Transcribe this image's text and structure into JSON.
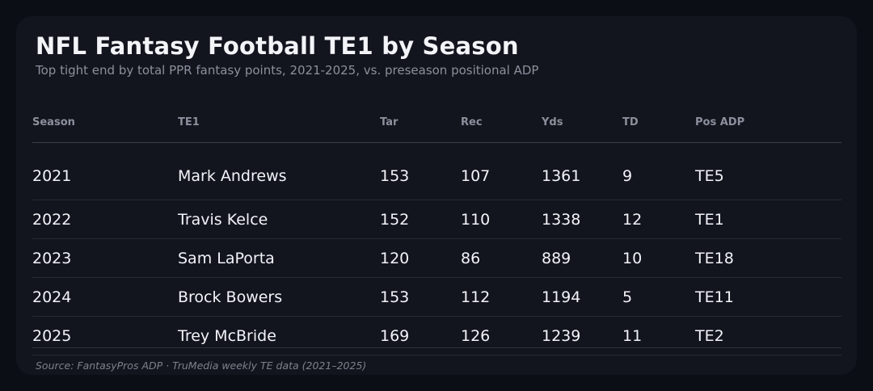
{
  "header": {
    "title": "NFL Fantasy Football TE1 by Season",
    "subtitle": "Top tight end by total PPR fantasy points, 2021-2025, vs. preseason positional ADP"
  },
  "chart_data": {
    "type": "table",
    "columns": [
      "Season",
      "TE1",
      "Tar",
      "Rec",
      "Yds",
      "TD",
      "Pos ADP"
    ],
    "rows": [
      [
        "2021",
        "Mark Andrews",
        "153",
        "107",
        "1361",
        "9",
        "TE5"
      ],
      [
        "2022",
        "Travis Kelce",
        "152",
        "110",
        "1338",
        "12",
        "TE1"
      ],
      [
        "2023",
        "Sam LaPorta",
        "120",
        "86",
        "889",
        "10",
        "TE18"
      ],
      [
        "2024",
        "Brock Bowers",
        "153",
        "112",
        "1194",
        "5",
        "TE11"
      ],
      [
        "2025",
        "Trey McBride",
        "169",
        "126",
        "1239",
        "11",
        "TE2"
      ]
    ]
  },
  "footer": {
    "source": "Source: FantasyPros ADP · TruMedia weekly TE data (2021–2025)"
  },
  "colors": {
    "page_background": "#0b0e15",
    "card_background": "#12151e",
    "title_text": "#f2f4f8",
    "muted_text": "#8b909c"
  }
}
